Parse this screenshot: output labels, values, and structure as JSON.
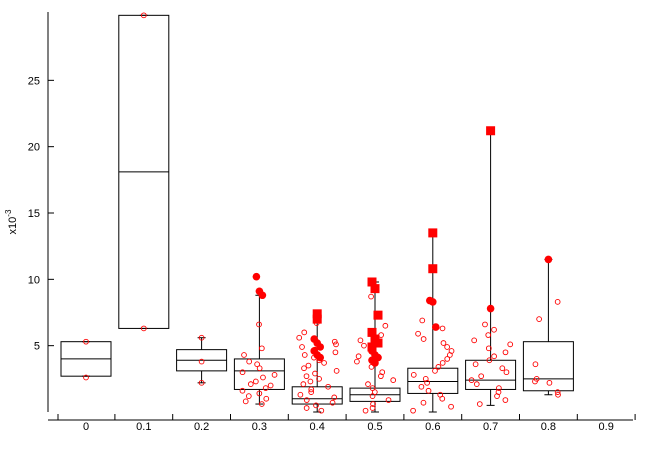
{
  "chart_data": {
    "type": "box",
    "categories": [
      "0",
      "0.1",
      "0.2",
      "0.3",
      "0.4",
      "0.5",
      "0.6",
      "0.7",
      "0.8",
      "0.9"
    ],
    "y_scale_label": "x10",
    "y_scale_exponent": "-3",
    "y_ticks": [
      "5",
      "10",
      "15",
      "20",
      "25"
    ],
    "ylim": [
      0,
      30
    ],
    "grid": false,
    "boxes": [
      {
        "category": "0",
        "q1": 2.7,
        "median": 4.0,
        "q3": 5.3,
        "whisker_low": 2.7,
        "whisker_high": 5.3
      },
      {
        "category": "0.1",
        "q1": 6.3,
        "median": 18.1,
        "q3": 29.9,
        "whisker_low": 6.3,
        "whisker_high": 29.9
      },
      {
        "category": "0.2",
        "q1": 3.1,
        "median": 3.9,
        "q3": 4.7,
        "whisker_low": 2.2,
        "whisker_high": 5.6
      },
      {
        "category": "0.3",
        "q1": 1.7,
        "median": 3.1,
        "q3": 4.0,
        "whisker_low": 0.6,
        "whisker_high": 8.8
      },
      {
        "category": "0.4",
        "q1": 0.6,
        "median": 1.0,
        "q3": 1.9,
        "whisker_low": 0.0,
        "whisker_high": 7.4
      },
      {
        "category": "0.5",
        "q1": 0.8,
        "median": 1.3,
        "q3": 1.8,
        "whisker_low": 0.0,
        "whisker_high": 9.8
      },
      {
        "category": "0.6",
        "q1": 1.4,
        "median": 2.3,
        "q3": 3.3,
        "whisker_low": 0.0,
        "whisker_high": 13.5
      },
      {
        "category": "0.7",
        "q1": 1.7,
        "median": 2.4,
        "q3": 3.9,
        "whisker_low": 0.5,
        "whisker_high": 21.2
      },
      {
        "category": "0.8",
        "q1": 1.6,
        "median": 2.5,
        "q3": 5.3,
        "whisker_low": 1.3,
        "whisker_high": 11.5
      }
    ],
    "outliers": [
      {
        "category": "0.3",
        "values": [
          10.2,
          9.1,
          8.8
        ],
        "marker": "circle"
      },
      {
        "category": "0.4",
        "values": [
          7.4,
          7.0
        ],
        "marker": "square"
      },
      {
        "category": "0.4",
        "values": [
          5.5,
          5.2,
          4.9,
          4.6,
          4.3,
          4.1
        ],
        "marker": "circle"
      },
      {
        "category": "0.5",
        "values": [
          9.8,
          9.3,
          7.3,
          6.0,
          5.5,
          5.2,
          4.9
        ],
        "marker": "square"
      },
      {
        "category": "0.5",
        "values": [
          4.6,
          4.3,
          4.1,
          3.9,
          3.7
        ],
        "marker": "circle"
      },
      {
        "category": "0.6",
        "values": [
          13.5,
          10.8
        ],
        "marker": "square"
      },
      {
        "category": "0.6",
        "values": [
          8.4,
          8.3,
          6.4
        ],
        "marker": "circle"
      },
      {
        "category": "0.7",
        "values": [
          21.2
        ],
        "marker": "square"
      },
      {
        "category": "0.7",
        "values": [
          7.8
        ],
        "marker": "circle"
      },
      {
        "category": "0.8",
        "values": [
          11.5
        ],
        "marker": "circle"
      }
    ],
    "points": [
      {
        "category": "0",
        "values": [
          5.3,
          2.6
        ]
      },
      {
        "category": "0.1",
        "values": [
          29.9,
          6.3
        ]
      },
      {
        "category": "0.2",
        "values": [
          5.6,
          3.8,
          2.2
        ]
      },
      {
        "category": "0.3",
        "values": [
          6.6,
          4.8,
          4.3,
          3.8,
          3.6,
          3.3,
          3.0,
          2.8,
          2.6,
          2.3,
          2.1,
          2.0,
          1.8,
          1.6,
          1.4,
          1.2,
          1.0,
          0.8,
          0.6
        ]
      },
      {
        "category": "0.4",
        "values": [
          6.7,
          6.0,
          5.6,
          5.3,
          5.1,
          4.9,
          4.7,
          4.5,
          4.3,
          4.1,
          3.9,
          3.7,
          3.5,
          3.3,
          3.1,
          2.9,
          2.7,
          2.5,
          2.3,
          2.1,
          1.9,
          1.7,
          1.5,
          1.3,
          1.1,
          0.9,
          0.7,
          0.5,
          0.3,
          0.1
        ]
      },
      {
        "category": "0.5",
        "values": [
          8.7,
          6.5,
          5.8,
          5.4,
          5.0,
          4.6,
          4.2,
          3.8,
          3.4,
          3.0,
          2.7,
          2.4,
          2.1,
          1.8,
          1.5,
          1.2,
          0.9,
          0.6,
          0.3,
          0.1
        ]
      },
      {
        "category": "0.6",
        "values": [
          6.9,
          6.3,
          5.9,
          5.5,
          5.2,
          4.9,
          4.6,
          4.3,
          4.0,
          3.7,
          3.4,
          3.1,
          2.8,
          2.5,
          2.2,
          1.9,
          1.6,
          1.3,
          1.0,
          0.7,
          0.4,
          0.1
        ]
      },
      {
        "category": "0.7",
        "values": [
          6.6,
          6.2,
          5.8,
          5.4,
          5.1,
          4.8,
          4.5,
          4.2,
          3.9,
          3.6,
          3.3,
          3.0,
          2.7,
          2.4,
          2.1,
          1.8,
          1.5,
          1.2,
          0.9,
          0.6
        ]
      },
      {
        "category": "0.8",
        "values": [
          8.3,
          7.0,
          3.6,
          2.5,
          2.3,
          2.2,
          1.5,
          1.3
        ]
      }
    ],
    "colors": {
      "points": "#ff0000",
      "box": "#000000",
      "axis": "#000000"
    }
  }
}
